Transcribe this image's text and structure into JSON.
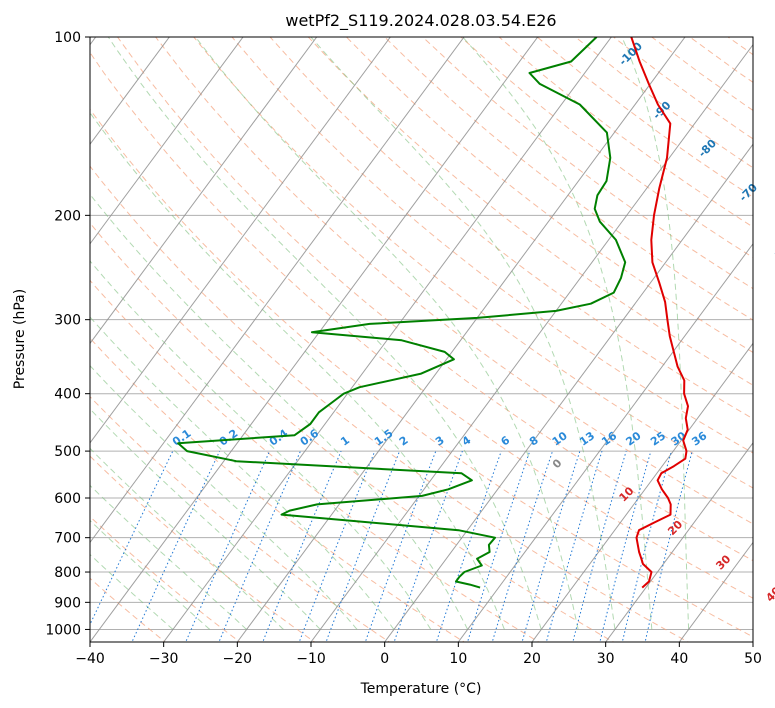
{
  "chart_data": {
    "type": "line",
    "title": "wetPf2_S119.2024.028.03.54.E26",
    "xlabel": "Temperature (°C)",
    "ylabel": "Pressure (hPa)",
    "xlim": [
      -40,
      50
    ],
    "ylim": [
      1050,
      100
    ],
    "y_scale": "log",
    "x_ticks": [
      "−40",
      "−30",
      "−20",
      "−10",
      "0",
      "10",
      "20",
      "30",
      "40",
      "50"
    ],
    "y_ticks": [
      "100",
      "200",
      "300",
      "400",
      "500",
      "600",
      "700",
      "800",
      "900",
      "1000"
    ],
    "grid": true,
    "skew": true,
    "series": [
      {
        "color": "#e00000",
        "points": [
          [
            29.5,
            850
          ],
          [
            29.8,
            830
          ],
          [
            29.2,
            800
          ],
          [
            27.2,
            775
          ],
          [
            26.5,
            760
          ],
          [
            25.5,
            740
          ],
          [
            23.7,
            700
          ],
          [
            23.3,
            680
          ],
          [
            24.6,
            660
          ],
          [
            26,
            640
          ],
          [
            25,
            615
          ],
          [
            24,
            600
          ],
          [
            22.3,
            580
          ],
          [
            20.8,
            560
          ],
          [
            20.6,
            545
          ],
          [
            21.6,
            530
          ],
          [
            22.4,
            515
          ],
          [
            21.8,
            500
          ],
          [
            20.3,
            480
          ],
          [
            19.8,
            460
          ],
          [
            18.4,
            440
          ],
          [
            17.5,
            420
          ],
          [
            15.7,
            400
          ],
          [
            14.4,
            380
          ],
          [
            12.1,
            360
          ],
          [
            10.1,
            340
          ],
          [
            8,
            320
          ],
          [
            6,
            300
          ],
          [
            3.9,
            280
          ],
          [
            1.2,
            260
          ],
          [
            -1.8,
            240
          ],
          [
            -4.2,
            220
          ],
          [
            -6.3,
            200
          ],
          [
            -8.3,
            180
          ],
          [
            -10.3,
            160
          ],
          [
            -13.3,
            140
          ],
          [
            -16.9,
            130
          ],
          [
            -20.2,
            120
          ],
          [
            -23.7,
            110
          ],
          [
            -27.3,
            100
          ]
        ]
      },
      {
        "color": "#008000",
        "points": [
          [
            7.5,
            850
          ],
          [
            5.8,
            840
          ],
          [
            3.6,
            830
          ],
          [
            3.6,
            815
          ],
          [
            3.8,
            800
          ],
          [
            5.5,
            780
          ],
          [
            4.2,
            760
          ],
          [
            5.2,
            740
          ],
          [
            4.4,
            720
          ],
          [
            4.5,
            700
          ],
          [
            -1.2,
            680
          ],
          [
            -26.8,
            640
          ],
          [
            -26.1,
            630
          ],
          [
            -23,
            615
          ],
          [
            -9.6,
            595
          ],
          [
            -6.7,
            580
          ],
          [
            -4.4,
            560
          ],
          [
            -6.5,
            545
          ],
          [
            -38.3,
            520
          ],
          [
            -46,
            500
          ],
          [
            -48,
            485
          ],
          [
            -33,
            470
          ],
          [
            -32,
            450
          ],
          [
            -32,
            430
          ],
          [
            -31,
            410
          ],
          [
            -30.5,
            400
          ],
          [
            -29,
            390
          ],
          [
            -22,
            370
          ],
          [
            -19,
            350
          ],
          [
            -21,
            340
          ],
          [
            -28,
            325
          ],
          [
            -41,
            315
          ],
          [
            -34,
            305
          ],
          [
            -20,
            298
          ],
          [
            -10,
            290
          ],
          [
            -6,
            282
          ],
          [
            -4,
            270
          ],
          [
            -4.5,
            255
          ],
          [
            -5.5,
            240
          ],
          [
            -9,
            220
          ],
          [
            -13,
            205
          ],
          [
            -15,
            195
          ],
          [
            -16,
            185
          ],
          [
            -16.2,
            175
          ],
          [
            -18,
            160
          ],
          [
            -21,
            145
          ],
          [
            -27.5,
            130
          ],
          [
            -35,
            120
          ],
          [
            -37.5,
            115
          ],
          [
            -33,
            110
          ],
          [
            -32,
            100
          ]
        ]
      }
    ]
  }
}
